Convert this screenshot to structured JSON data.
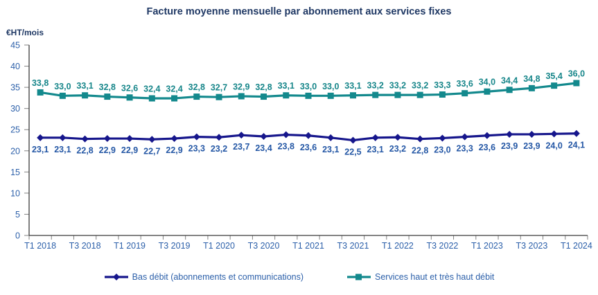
{
  "title": "Facture moyenne mensuelle par abonnement aux services fixes",
  "y_unit": "€HT/mois",
  "colors": {
    "title_text": "#1F3864",
    "axis_label_text": "#2B5FA9",
    "axis_line": "#3a3a3a",
    "tick_mark": "#808080",
    "series_bas_debit": "#16168C",
    "series_haut_debit": "#13898D",
    "label_bas_debit": "#2457A5",
    "label_haut_debit": "#17868A"
  },
  "chart_data": {
    "type": "line",
    "x": [
      "T1 2018",
      "T2 2018",
      "T3 2018",
      "T4 2018",
      "T1 2019",
      "T2 2019",
      "T3 2019",
      "T4 2019",
      "T1 2020",
      "T2 2020",
      "T3 2020",
      "T4 2020",
      "T1 2021",
      "T2 2021",
      "T3 2021",
      "T4 2021",
      "T1 2022",
      "T2 2022",
      "T3 2022",
      "T4 2022",
      "T1 2023",
      "T2 2023",
      "T3 2023",
      "T4 2023",
      "T1 2024"
    ],
    "x_tick_labels": [
      "T1 2018",
      "T3 2018",
      "T1 2019",
      "T3 2019",
      "T1 2020",
      "T3 2020",
      "T1 2021",
      "T3 2021",
      "T1 2022",
      "T3 2022",
      "T1 2023",
      "T3 2023",
      "T1 2024"
    ],
    "series": [
      {
        "name": "Bas débit (abonnements et communications)",
        "color": "#16168C",
        "marker": "diamond",
        "label_color": "#2457A5",
        "label_position": "below",
        "values": [
          23.1,
          23.1,
          22.8,
          22.9,
          22.9,
          22.7,
          22.9,
          23.3,
          23.2,
          23.7,
          23.4,
          23.8,
          23.6,
          23.1,
          22.5,
          23.1,
          23.2,
          22.8,
          23.0,
          23.3,
          23.6,
          23.9,
          23.9,
          24.0,
          24.1
        ]
      },
      {
        "name": "Services haut et très haut débit",
        "color": "#13898D",
        "marker": "square",
        "label_color": "#17868A",
        "label_position": "above",
        "values": [
          33.8,
          33.0,
          33.1,
          32.8,
          32.6,
          32.4,
          32.4,
          32.8,
          32.7,
          32.9,
          32.8,
          33.1,
          33.0,
          33.0,
          33.1,
          33.2,
          33.2,
          33.2,
          33.3,
          33.6,
          34.0,
          34.4,
          34.8,
          35.4,
          36.0
        ]
      }
    ],
    "title": "Facture moyenne mensuelle par abonnement aux services fixes",
    "xlabel": "",
    "ylabel": "€HT/mois",
    "ylim": [
      0,
      45
    ],
    "y_ticks": [
      0,
      5,
      10,
      15,
      20,
      25,
      30,
      35,
      40,
      45
    ],
    "grid": false,
    "legend_position": "bottom",
    "decimal_separator": ","
  }
}
